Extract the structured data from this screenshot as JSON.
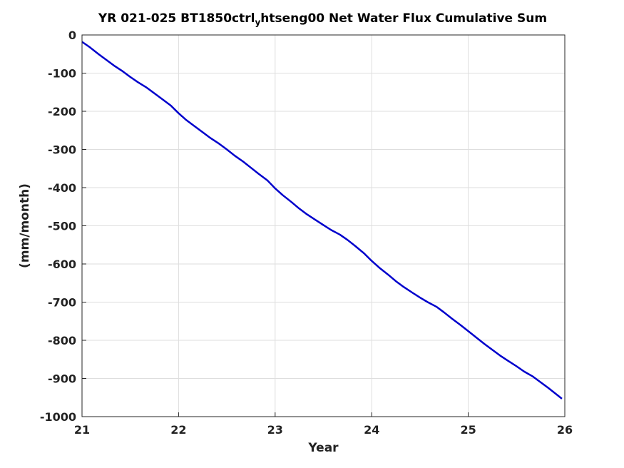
{
  "chart_data": {
    "type": "line",
    "title_main": "YR 021-025 BT1850ctrl",
    "title_sub": "y",
    "title_rest": "htseng00 Net Water Flux Cumulative Sum",
    "xlabel": "Year",
    "ylabel": "(mm/month)",
    "xlim": [
      21,
      26
    ],
    "ylim": [
      -1000,
      0
    ],
    "xticks": [
      21,
      22,
      23,
      24,
      25,
      26
    ],
    "yticks": [
      0,
      -100,
      -200,
      -300,
      -400,
      -500,
      -600,
      -700,
      -800,
      -900,
      -1000
    ],
    "grid": true,
    "series": [
      {
        "color": "#0000cc",
        "x": [
          21.0,
          21.08,
          21.17,
          21.25,
          21.33,
          21.42,
          21.5,
          21.58,
          21.67,
          21.75,
          21.83,
          21.92,
          22.0,
          22.08,
          22.17,
          22.25,
          22.33,
          22.42,
          22.5,
          22.58,
          22.67,
          22.75,
          22.83,
          22.92,
          23.0,
          23.08,
          23.17,
          23.25,
          23.33,
          23.42,
          23.5,
          23.58,
          23.67,
          23.75,
          23.83,
          23.92,
          24.0,
          24.08,
          24.17,
          24.25,
          24.33,
          24.42,
          24.5,
          24.58,
          24.67,
          24.75,
          24.83,
          24.92,
          25.0,
          25.08,
          25.17,
          25.25,
          25.33,
          25.42,
          25.5,
          25.58,
          25.67,
          25.75,
          25.83,
          25.92,
          25.97
        ],
        "y": [
          -18,
          -32,
          -50,
          -65,
          -80,
          -95,
          -110,
          -124,
          -138,
          -153,
          -168,
          -185,
          -205,
          -223,
          -240,
          -255,
          -270,
          -285,
          -300,
          -316,
          -332,
          -348,
          -364,
          -381,
          -402,
          -420,
          -438,
          -455,
          -470,
          -485,
          -498,
          -511,
          -523,
          -537,
          -553,
          -572,
          -592,
          -610,
          -628,
          -645,
          -660,
          -675,
          -688,
          -700,
          -712,
          -727,
          -743,
          -760,
          -776,
          -792,
          -810,
          -825,
          -840,
          -855,
          -868,
          -882,
          -895,
          -910,
          -925,
          -943,
          -953
        ]
      }
    ]
  }
}
